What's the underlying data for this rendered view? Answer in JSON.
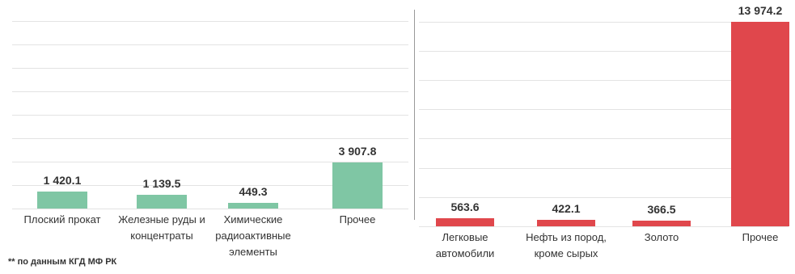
{
  "chart_data": [
    {
      "type": "bar",
      "categories": [
        "Плоский прокат",
        "Железные руды и концентраты",
        "Химические радиоактивные элементы",
        "Прочее"
      ],
      "values": [
        1420.1,
        1139.5,
        449.3,
        3907.8
      ],
      "value_labels": [
        "1 420.1",
        "1 139.5",
        "449.3",
        "3 907.8"
      ],
      "color": "#7fc6a4",
      "ylim": [
        0,
        16000
      ],
      "yticks": [
        0,
        2000,
        4000,
        6000,
        8000,
        10000,
        12000,
        14000,
        16000
      ],
      "grid": true
    },
    {
      "type": "bar",
      "categories": [
        "Легковые автомобили",
        "Нефть из пород, кроме сырых",
        "Золото",
        "Прочее"
      ],
      "values": [
        563.6,
        422.1,
        366.5,
        13974.2
      ],
      "value_labels": [
        "563.6",
        "422.1",
        "366.5",
        "13 974.2"
      ],
      "color": "#e0474c",
      "ylim": [
        0,
        14000
      ],
      "yticks": [
        0,
        2000,
        4000,
        6000,
        8000,
        10000,
        12000,
        14000
      ],
      "grid": true
    }
  ],
  "footnote": "** по данным КГД МФ РК"
}
